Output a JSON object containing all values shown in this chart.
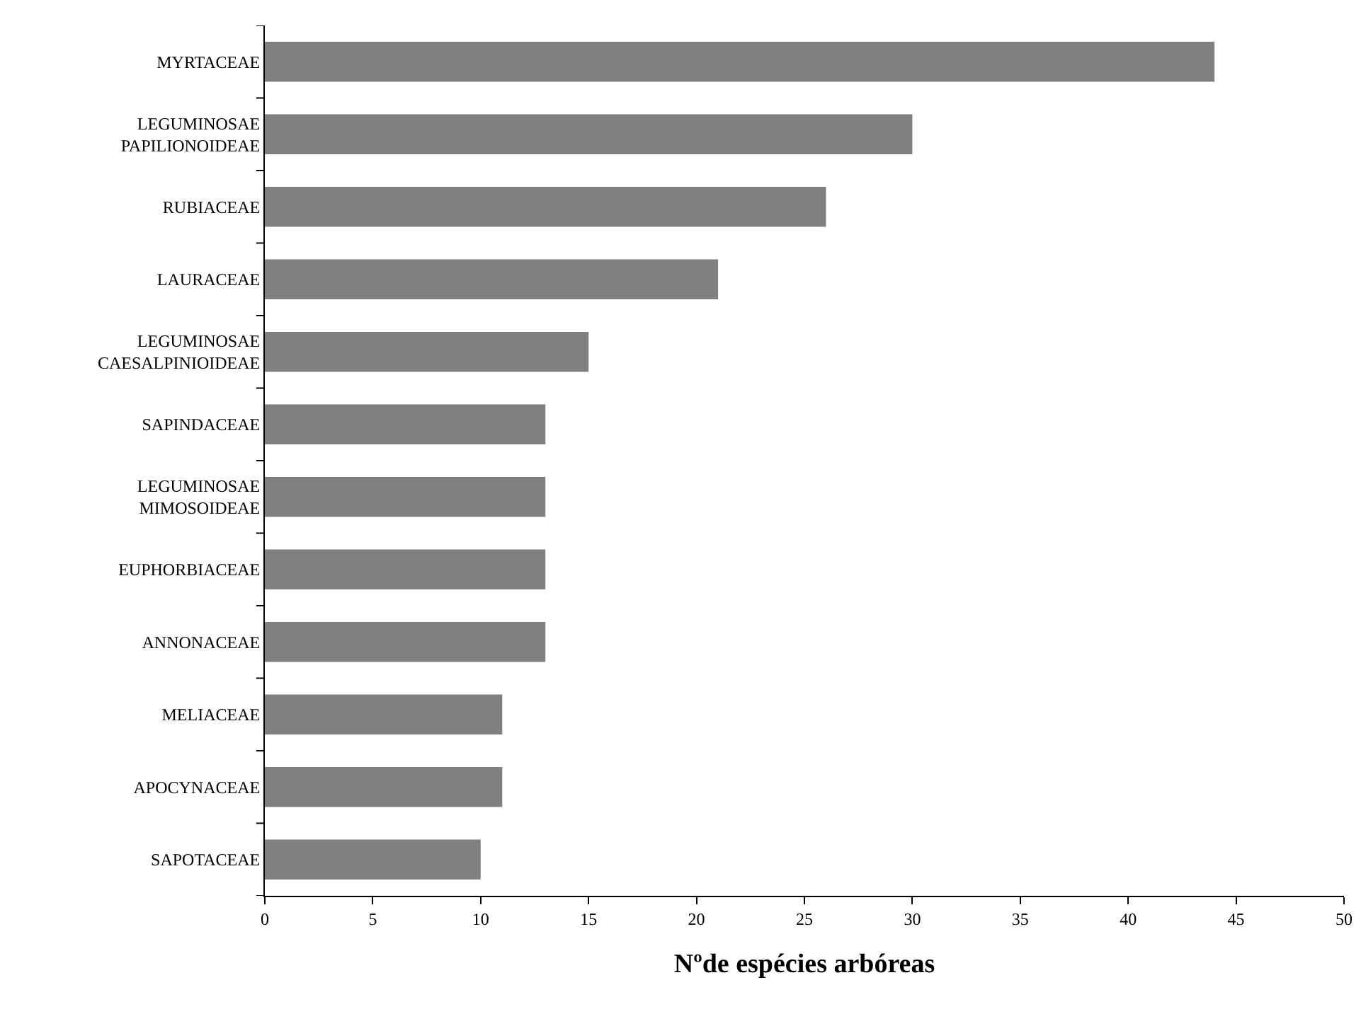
{
  "chart_data": {
    "type": "bar",
    "orientation": "horizontal",
    "xlabel": "Nºde espécies arbóreas",
    "categories": [
      "MYRTACEAE",
      "LEGUMINOSAE PAPILIONOIDEAE",
      "RUBIACEAE",
      "LAURACEAE",
      "LEGUMINOSAE CAESALPINIOIDEAE",
      "SAPINDACEAE",
      "LEGUMINOSAE MIMOSOIDEAE",
      "EUPHORBIACEAE",
      "ANNONACEAE",
      "MELIACEAE",
      "APOCYNACEAE",
      "SAPOTACEAE"
    ],
    "values": [
      44,
      30,
      26,
      21,
      15,
      13,
      13,
      13,
      13,
      11,
      11,
      10
    ],
    "color": "#808080",
    "xlim": [
      0,
      50
    ],
    "xticks": [
      0,
      5,
      10,
      15,
      20,
      25,
      30,
      35,
      40,
      45,
      50
    ],
    "grid": false
  }
}
